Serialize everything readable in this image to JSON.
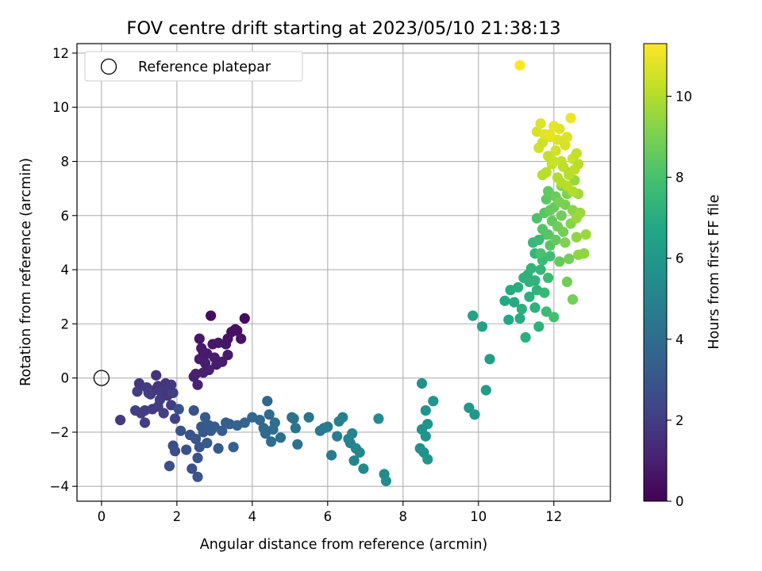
{
  "chart_data": {
    "type": "scatter",
    "title": "FOV centre drift starting at 2023/05/10 21:38:13",
    "xlabel": "Angular distance from reference (arcmin)",
    "ylabel": "Rotation from reference (arcmin)",
    "xlim": [
      -0.65,
      13.5
    ],
    "ylim": [
      -4.55,
      12.35
    ],
    "xticks": [
      0,
      2,
      4,
      6,
      8,
      10,
      12
    ],
    "yticks": [
      -4,
      -2,
      0,
      2,
      4,
      6,
      8,
      10,
      12
    ],
    "grid": true,
    "legend": {
      "position": "top-left",
      "entries": [
        "Reference platepar"
      ]
    },
    "reference_point": {
      "x": 0,
      "y": 0
    },
    "colorbar": {
      "label": "Hours from first FF file",
      "range": [
        0,
        11.3
      ],
      "ticks": [
        0,
        2,
        4,
        6,
        8,
        10
      ],
      "colormap": "viridis"
    },
    "points": [
      [
        0.5,
        -1.55,
        1.9
      ],
      [
        0.95,
        -0.5,
        2.0
      ],
      [
        1.0,
        -0.2,
        1.8
      ],
      [
        1.05,
        -1.3,
        2.0
      ],
      [
        1.15,
        -1.65,
        2.1
      ],
      [
        1.2,
        -0.35,
        1.9
      ],
      [
        1.3,
        -0.6,
        1.9
      ],
      [
        1.35,
        -1.15,
        2.0
      ],
      [
        1.4,
        -0.45,
        1.8
      ],
      [
        1.45,
        0.1,
        1.7
      ],
      [
        1.5,
        -0.3,
        1.8
      ],
      [
        1.55,
        -0.8,
        2.0
      ],
      [
        1.6,
        -0.55,
        1.9
      ],
      [
        1.65,
        -1.3,
        2.1
      ],
      [
        1.7,
        -0.2,
        1.7
      ],
      [
        1.75,
        -0.65,
        1.8
      ],
      [
        1.8,
        -0.4,
        1.9
      ],
      [
        1.85,
        -1.0,
        2.0
      ],
      [
        1.9,
        -0.55,
        2.1
      ],
      [
        1.95,
        -1.5,
        2.2
      ],
      [
        1.15,
        -1.2,
        2.0
      ],
      [
        1.25,
        -0.55,
        2.0
      ],
      [
        0.9,
        -1.2,
        2.1
      ],
      [
        1.5,
        -1.05,
        2.0
      ],
      [
        1.85,
        -0.25,
        1.8
      ],
      [
        1.8,
        -3.25,
        2.7
      ],
      [
        1.9,
        -2.5,
        2.6
      ],
      [
        1.95,
        -2.7,
        2.7
      ],
      [
        2.05,
        -1.15,
        2.8
      ],
      [
        2.1,
        -1.95,
        2.9
      ],
      [
        2.25,
        -2.65,
        2.8
      ],
      [
        2.35,
        -2.1,
        2.9
      ],
      [
        2.4,
        -3.35,
        2.8
      ],
      [
        2.45,
        -1.2,
        2.9
      ],
      [
        2.5,
        -2.25,
        3.0
      ],
      [
        2.55,
        -2.95,
        2.9
      ],
      [
        2.55,
        -3.65,
        3.0
      ],
      [
        2.6,
        -2.55,
        3.0
      ],
      [
        2.65,
        -1.8,
        3.1
      ],
      [
        2.7,
        -2.0,
        3.1
      ],
      [
        2.75,
        -1.45,
        3.2
      ],
      [
        2.8,
        -2.4,
        3.1
      ],
      [
        2.85,
        -1.75,
        3.2
      ],
      [
        2.9,
        -1.95,
        3.2
      ],
      [
        3.0,
        -1.8,
        3.3
      ],
      [
        3.1,
        -2.6,
        3.2
      ],
      [
        3.2,
        -1.95,
        3.3
      ],
      [
        3.3,
        -1.65,
        3.4
      ],
      [
        3.4,
        -1.7,
        3.4
      ],
      [
        3.5,
        -2.55,
        3.5
      ],
      [
        3.6,
        -1.75,
        3.6
      ],
      [
        2.45,
        0.05,
        1.0
      ],
      [
        2.5,
        0.15,
        1.0
      ],
      [
        2.55,
        -0.25,
        1.1
      ],
      [
        2.6,
        0.7,
        0.9
      ],
      [
        2.6,
        1.45,
        0.7
      ],
      [
        2.65,
        1.1,
        0.8
      ],
      [
        2.7,
        0.2,
        1.0
      ],
      [
        2.75,
        0.55,
        0.9
      ],
      [
        2.8,
        0.9,
        0.8
      ],
      [
        2.85,
        0.3,
        1.0
      ],
      [
        2.9,
        2.3,
        0.4
      ],
      [
        2.95,
        1.25,
        0.7
      ],
      [
        3.0,
        0.75,
        0.9
      ],
      [
        3.05,
        0.5,
        0.9
      ],
      [
        3.1,
        1.3,
        0.7
      ],
      [
        3.2,
        0.6,
        0.9
      ],
      [
        3.3,
        1.25,
        0.7
      ],
      [
        3.35,
        1.45,
        0.6
      ],
      [
        3.45,
        1.7,
        0.5
      ],
      [
        3.55,
        1.8,
        0.5
      ],
      [
        3.6,
        1.75,
        0.5
      ],
      [
        3.7,
        1.45,
        0.6
      ],
      [
        3.8,
        2.2,
        0.4
      ],
      [
        3.35,
        0.85,
        0.8
      ],
      [
        2.7,
        0.95,
        0.8
      ],
      [
        3.8,
        -1.65,
        3.6
      ],
      [
        4.0,
        -1.45,
        3.7
      ],
      [
        4.2,
        -1.55,
        3.8
      ],
      [
        4.3,
        -1.85,
        3.9
      ],
      [
        4.35,
        -2.05,
        3.9
      ],
      [
        4.4,
        -0.85,
        3.8
      ],
      [
        4.45,
        -1.35,
        3.9
      ],
      [
        4.5,
        -2.35,
        4.0
      ],
      [
        4.55,
        -1.9,
        4.0
      ],
      [
        4.6,
        -1.65,
        4.1
      ],
      [
        4.75,
        -2.2,
        4.1
      ],
      [
        5.05,
        -1.45,
        4.2
      ],
      [
        5.1,
        -1.5,
        4.2
      ],
      [
        5.15,
        -1.85,
        4.3
      ],
      [
        5.2,
        -2.45,
        4.3
      ],
      [
        5.5,
        -1.45,
        4.4
      ],
      [
        5.8,
        -1.95,
        4.5
      ],
      [
        5.9,
        -1.85,
        4.6
      ],
      [
        6.0,
        -1.8,
        4.6
      ],
      [
        6.1,
        -2.85,
        4.7
      ],
      [
        6.25,
        -2.15,
        4.8
      ],
      [
        6.3,
        -1.6,
        4.9
      ],
      [
        6.4,
        -1.45,
        4.9
      ],
      [
        6.55,
        -2.25,
        5.0
      ],
      [
        6.6,
        -2.4,
        5.0
      ],
      [
        6.65,
        -2.05,
        5.1
      ],
      [
        6.7,
        -3.05,
        5.1
      ],
      [
        6.75,
        -2.6,
        5.2
      ],
      [
        6.85,
        -2.75,
        5.2
      ],
      [
        6.95,
        -3.35,
        5.3
      ],
      [
        7.35,
        -1.5,
        5.4
      ],
      [
        7.5,
        -3.55,
        5.4
      ],
      [
        7.55,
        -3.8,
        5.5
      ],
      [
        8.45,
        -2.6,
        5.6
      ],
      [
        8.5,
        -0.2,
        5.7
      ],
      [
        8.5,
        -1.9,
        5.7
      ],
      [
        8.55,
        -2.75,
        5.7
      ],
      [
        8.6,
        -1.2,
        5.8
      ],
      [
        8.6,
        -2.15,
        5.8
      ],
      [
        8.65,
        -3.0,
        5.8
      ],
      [
        8.65,
        -1.7,
        5.8
      ],
      [
        8.8,
        -0.85,
        5.9
      ],
      [
        9.75,
        -1.1,
        6.0
      ],
      [
        9.9,
        -1.35,
        6.1
      ],
      [
        10.2,
        -0.45,
        6.2
      ],
      [
        10.3,
        0.7,
        6.3
      ],
      [
        9.85,
        2.3,
        6.5
      ],
      [
        10.1,
        1.9,
        6.5
      ],
      [
        10.7,
        2.85,
        6.8
      ],
      [
        10.8,
        2.15,
        6.8
      ],
      [
        10.85,
        3.25,
        6.9
      ],
      [
        10.95,
        2.8,
        6.9
      ],
      [
        11.05,
        3.35,
        7.0
      ],
      [
        11.1,
        2.2,
        7.0
      ],
      [
        11.15,
        2.55,
        7.1
      ],
      [
        11.25,
        1.5,
        7.1
      ],
      [
        11.3,
        3.8,
        7.2
      ],
      [
        11.35,
        3.55,
        7.2
      ],
      [
        11.4,
        4.05,
        7.3
      ],
      [
        11.45,
        5.0,
        7.5
      ],
      [
        11.5,
        2.6,
        7.2
      ],
      [
        11.5,
        4.6,
        7.4
      ],
      [
        11.55,
        3.25,
        7.3
      ],
      [
        11.6,
        5.1,
        7.6
      ],
      [
        11.6,
        1.9,
        7.2
      ],
      [
        11.65,
        4.0,
        7.4
      ],
      [
        11.7,
        4.35,
        7.6
      ],
      [
        11.75,
        3.15,
        7.5
      ],
      [
        11.8,
        5.3,
        7.7
      ],
      [
        11.8,
        2.45,
        7.6
      ],
      [
        11.85,
        3.7,
        7.6
      ],
      [
        11.9,
        4.5,
        7.8
      ],
      [
        12.0,
        2.25,
        7.9
      ],
      [
        11.5,
        3.6,
        7.3
      ],
      [
        11.35,
        3.0,
        7.1
      ],
      [
        11.2,
        3.7,
        7.2
      ],
      [
        11.55,
        5.9,
        8.1
      ],
      [
        11.65,
        4.6,
        8.0
      ],
      [
        11.7,
        5.5,
        8.2
      ],
      [
        11.75,
        6.1,
        8.3
      ],
      [
        11.8,
        6.6,
        8.4
      ],
      [
        11.85,
        5.3,
        8.3
      ],
      [
        11.85,
        6.9,
        8.5
      ],
      [
        11.9,
        4.9,
        8.3
      ],
      [
        11.95,
        5.8,
        8.6
      ],
      [
        12.0,
        6.3,
        8.6
      ],
      [
        12.05,
        5.1,
        8.6
      ],
      [
        12.05,
        6.7,
        8.7
      ],
      [
        12.1,
        5.6,
        8.8
      ],
      [
        12.15,
        4.3,
        8.6
      ],
      [
        12.2,
        6.0,
        8.8
      ],
      [
        12.2,
        7.1,
        9.0
      ],
      [
        12.25,
        5.4,
        8.9
      ],
      [
        12.3,
        6.4,
        9.0
      ],
      [
        12.35,
        3.55,
        8.8
      ],
      [
        12.35,
        6.8,
        9.1
      ],
      [
        12.4,
        4.4,
        8.9
      ],
      [
        12.45,
        5.7,
        9.2
      ],
      [
        12.5,
        2.9,
        8.9
      ],
      [
        12.5,
        6.2,
        9.3
      ],
      [
        12.55,
        7.3,
        9.5
      ],
      [
        12.6,
        5.2,
        9.4
      ],
      [
        12.65,
        4.55,
        9.4
      ],
      [
        12.7,
        6.1,
        9.6
      ],
      [
        12.8,
        4.6,
        9.4
      ],
      [
        12.85,
        5.3,
        9.6
      ],
      [
        12.65,
        6.8,
        9.7
      ],
      [
        12.6,
        5.9,
        9.6
      ],
      [
        12.4,
        7.6,
        9.7
      ],
      [
        12.3,
        5.0,
        9.1
      ],
      [
        12.15,
        6.5,
        9.0
      ],
      [
        11.9,
        6.2,
        8.6
      ],
      [
        11.55,
        9.1,
        10.6
      ],
      [
        11.6,
        8.5,
        10.5
      ],
      [
        11.65,
        9.4,
        10.7
      ],
      [
        11.7,
        8.7,
        10.4
      ],
      [
        11.75,
        9.0,
        10.8
      ],
      [
        11.8,
        7.6,
        10.1
      ],
      [
        11.85,
        8.2,
        10.3
      ],
      [
        11.9,
        8.9,
        10.7
      ],
      [
        11.95,
        7.9,
        10.2
      ],
      [
        12.0,
        9.3,
        10.9
      ],
      [
        12.05,
        8.4,
        10.5
      ],
      [
        12.1,
        7.4,
        10.0
      ],
      [
        12.1,
        8.8,
        10.7
      ],
      [
        12.15,
        9.2,
        10.8
      ],
      [
        12.2,
        8.0,
        10.3
      ],
      [
        12.25,
        7.8,
        10.2
      ],
      [
        12.3,
        8.6,
        10.6
      ],
      [
        12.35,
        7.1,
        10.1
      ],
      [
        12.4,
        7.5,
        10.1
      ],
      [
        12.45,
        9.6,
        11.0
      ],
      [
        12.5,
        8.1,
        10.4
      ],
      [
        12.5,
        6.9,
        10.0
      ],
      [
        12.55,
        7.7,
        10.2
      ],
      [
        12.6,
        8.3,
        10.3
      ],
      [
        12.65,
        7.9,
        10.1
      ],
      [
        12.0,
        8.0,
        10.4
      ],
      [
        11.9,
        9.0,
        10.9
      ],
      [
        12.2,
        7.2,
        10.0
      ],
      [
        11.7,
        7.5,
        10.1
      ],
      [
        12.35,
        8.9,
        10.7
      ],
      [
        11.1,
        11.55,
        11.3
      ]
    ]
  }
}
